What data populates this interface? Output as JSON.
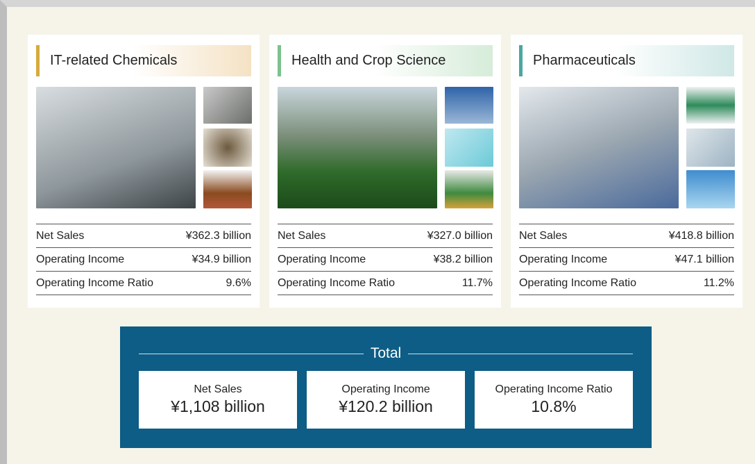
{
  "segments": [
    {
      "title": "IT-related Chemicals",
      "rows": [
        {
          "label": "Net Sales",
          "value": "¥362.3 billion"
        },
        {
          "label": "Operating Income",
          "value": "¥34.9 billion"
        },
        {
          "label": "Operating Income Ratio",
          "value": "9.6%"
        }
      ]
    },
    {
      "title": "Health and Crop Science",
      "rows": [
        {
          "label": "Net Sales",
          "value": "¥327.0 billion"
        },
        {
          "label": "Operating Income",
          "value": "¥38.2 billion"
        },
        {
          "label": "Operating Income Ratio",
          "value": "11.7%"
        }
      ]
    },
    {
      "title": "Pharmaceuticals",
      "rows": [
        {
          "label": "Net Sales",
          "value": "¥418.8 billion"
        },
        {
          "label": "Operating Income",
          "value": "¥47.1 billion"
        },
        {
          "label": "Operating Income Ratio",
          "value": "11.2%"
        }
      ]
    }
  ],
  "total": {
    "title": "Total",
    "items": [
      {
        "label": "Net Sales",
        "value": "¥1,108 billion"
      },
      {
        "label": "Operating Income",
        "value": "¥120.2 billion"
      },
      {
        "label": "Operating Income Ratio",
        "value": "10.8%"
      }
    ]
  }
}
